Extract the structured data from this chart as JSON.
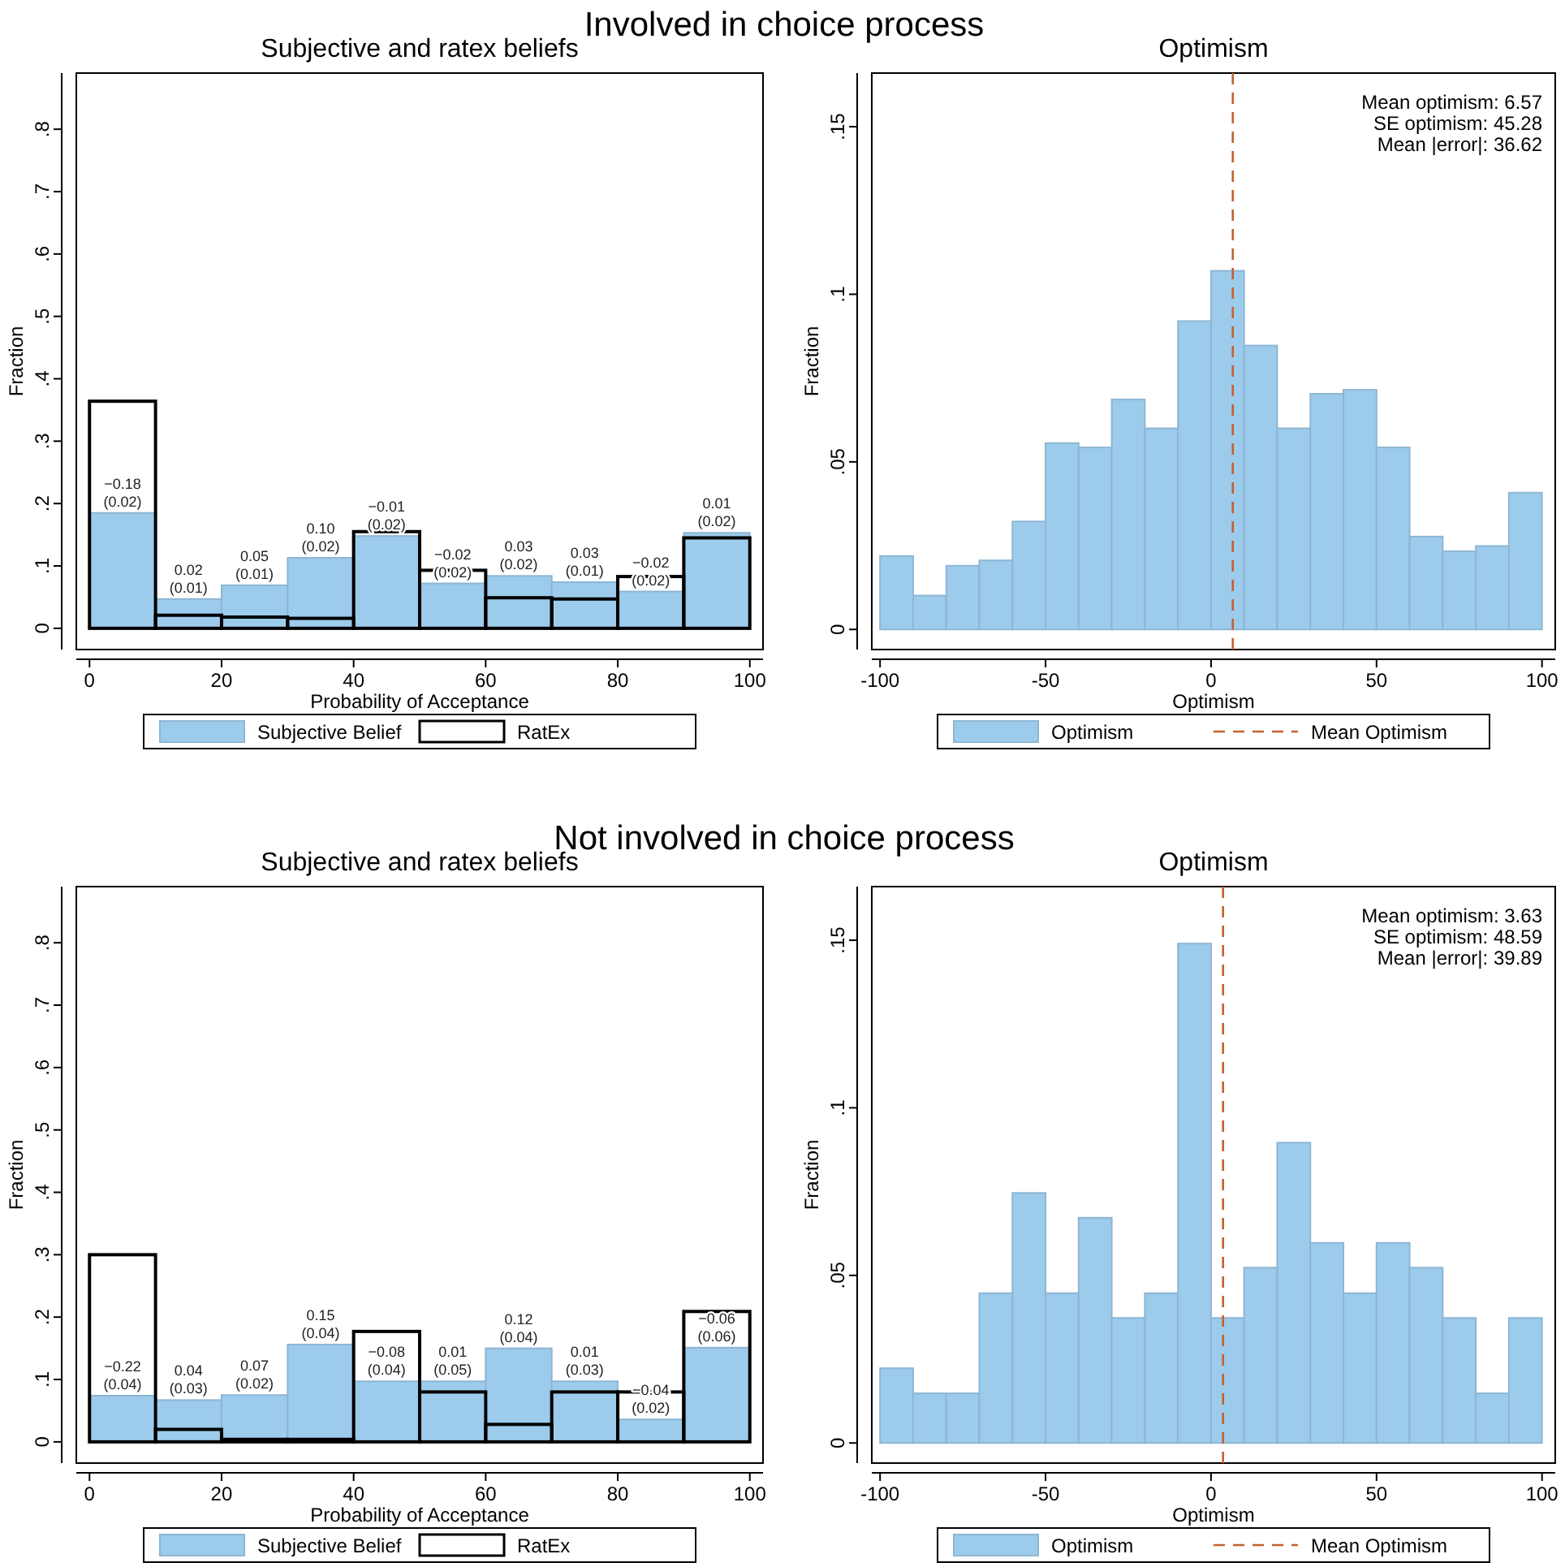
{
  "chart_data": [
    {
      "type": "histogram",
      "title": "Subjective and ratex beliefs",
      "xlabel": "Probability of Acceptance",
      "ylabel": "Fraction",
      "bins": [
        0,
        10,
        20,
        30,
        40,
        50,
        60,
        70,
        80,
        90,
        100
      ],
      "xlim": [
        -2,
        102
      ],
      "ylim": [
        -0.034,
        0.89
      ],
      "xticks": [
        0,
        20,
        40,
        60,
        80,
        100
      ],
      "yticks": [
        {
          "value": 0,
          "label": "0"
        },
        {
          "value": 0.1,
          "label": ".1"
        },
        {
          "value": 0.2,
          "label": ".2"
        },
        {
          "value": 0.3,
          "label": ".3"
        },
        {
          "value": 0.4,
          "label": ".4"
        },
        {
          "value": 0.5,
          "label": ".5"
        },
        {
          "value": 0.6,
          "label": ".6"
        },
        {
          "value": 0.7,
          "label": ".7"
        },
        {
          "value": 0.8,
          "label": ".8"
        }
      ],
      "legend": "bottom",
      "series": [
        {
          "name": "Subjective Belief",
          "color": "#9dcbec",
          "values": [
            0.185,
            0.047,
            0.069,
            0.113,
            0.148,
            0.072,
            0.084,
            0.074,
            0.059,
            0.153
          ]
        },
        {
          "name": "RatEx",
          "color": "#000000",
          "values": [
            0.364,
            0.021,
            0.018,
            0.016,
            0.155,
            0.093,
            0.049,
            0.047,
            0.083,
            0.145
          ]
        }
      ],
      "annotations": [
        "Involved in choice process",
        {
          "text": "−0.18\n(0.02)",
          "x": 5,
          "y": 0.185
        },
        {
          "text": "0.02\n(0.01)",
          "x": 15,
          "y": 0.047
        },
        {
          "text": "0.05\n(0.01)",
          "x": 25,
          "y": 0.069
        },
        {
          "text": "0.10\n(0.02)",
          "x": 35,
          "y": 0.113
        },
        {
          "text": "−0.01\n(0.02)",
          "x": 45,
          "y": 0.148
        },
        {
          "text": "−0.02\n(0.02)",
          "x": 55,
          "y": 0.072
        },
        {
          "text": "0.03\n(0.02)",
          "x": 65,
          "y": 0.084
        },
        {
          "text": "0.03\n(0.01)",
          "x": 75,
          "y": 0.074
        },
        {
          "text": "−0.02\n(0.02)",
          "x": 85,
          "y": 0.059
        },
        {
          "text": "0.01\n(0.02)",
          "x": 95,
          "y": 0.153
        }
      ]
    },
    {
      "type": "histogram",
      "title": "Optimism",
      "xlabel": "Optimism",
      "ylabel": "Fraction",
      "bins": [
        -100,
        -90,
        -80,
        -70,
        -60,
        -50,
        -40,
        -30,
        -20,
        -10,
        0,
        10,
        20,
        30,
        40,
        50,
        60,
        70,
        80,
        90,
        100
      ],
      "xlim": [
        -102.5,
        104
      ],
      "ylim": [
        -0.006,
        0.166
      ],
      "xticks": [
        -100,
        -50,
        0,
        50,
        100
      ],
      "yticks": [
        {
          "value": 0,
          "label": "0"
        },
        {
          "value": 0.05,
          "label": ".05"
        },
        {
          "value": 0.1,
          "label": ".1"
        },
        {
          "value": 0.15,
          "label": ".15"
        }
      ],
      "legend": "bottom",
      "series": [
        {
          "name": "Optimism",
          "color": "#9dcbec",
          "values": [
            0.0219,
            0.0101,
            0.019,
            0.0206,
            0.0322,
            0.0556,
            0.0543,
            0.0686,
            0.06,
            0.092,
            0.107,
            0.0847,
            0.06,
            0.0703,
            0.0715,
            0.0543,
            0.0277,
            0.0233,
            0.0249,
            0.0408
          ]
        }
      ],
      "ref_lines": [
        {
          "axis": "x",
          "value": 6.57,
          "label": "Mean Optimism",
          "color": "#c4602d",
          "line_style": "dashed"
        }
      ],
      "annotations": [
        "Mean optimism: 6.57",
        "SE optimism: 45.28",
        "Mean |error|: 36.62"
      ]
    },
    {
      "type": "histogram",
      "title": "Subjective and ratex beliefs",
      "xlabel": "Probability of Acceptance",
      "ylabel": "Fraction",
      "bins": [
        0,
        10,
        20,
        30,
        40,
        50,
        60,
        70,
        80,
        90,
        100
      ],
      "xlim": [
        -2,
        102
      ],
      "ylim": [
        -0.034,
        0.89
      ],
      "xticks": [
        0,
        20,
        40,
        60,
        80,
        100
      ],
      "yticks": [
        {
          "value": 0,
          "label": "0"
        },
        {
          "value": 0.1,
          "label": ".1"
        },
        {
          "value": 0.2,
          "label": ".2"
        },
        {
          "value": 0.3,
          "label": ".3"
        },
        {
          "value": 0.4,
          "label": ".4"
        },
        {
          "value": 0.5,
          "label": ".5"
        },
        {
          "value": 0.6,
          "label": ".6"
        },
        {
          "value": 0.7,
          "label": ".7"
        },
        {
          "value": 0.8,
          "label": ".8"
        }
      ],
      "legend": "bottom",
      "series": [
        {
          "name": "Subjective Belief",
          "color": "#9dcbec",
          "values": [
            0.074,
            0.067,
            0.075,
            0.156,
            0.097,
            0.097,
            0.15,
            0.097,
            0.036,
            0.151
          ]
        },
        {
          "name": "RatEx",
          "color": "#000000",
          "values": [
            0.3,
            0.02,
            0.004,
            0.004,
            0.177,
            0.08,
            0.028,
            0.08,
            0.08,
            0.209
          ]
        }
      ],
      "annotations": [
        "Not involved in choice process",
        {
          "text": "−0.22\n(0.04)",
          "x": 5,
          "y": 0.074
        },
        {
          "text": "0.04\n(0.03)",
          "x": 15,
          "y": 0.067
        },
        {
          "text": "0.07\n(0.02)",
          "x": 25,
          "y": 0.075
        },
        {
          "text": "0.15\n(0.04)",
          "x": 35,
          "y": 0.156
        },
        {
          "text": "−0.08\n(0.04)",
          "x": 45,
          "y": 0.097
        },
        {
          "text": "0.01\n(0.05)",
          "x": 55,
          "y": 0.097
        },
        {
          "text": "0.12\n(0.04)",
          "x": 65,
          "y": 0.15
        },
        {
          "text": "0.01\n(0.03)",
          "x": 75,
          "y": 0.097
        },
        {
          "text": "−0.04\n(0.02)",
          "x": 85,
          "y": 0.036
        },
        {
          "text": "−0.06\n(0.06)",
          "x": 95,
          "y": 0.151
        }
      ]
    },
    {
      "type": "histogram",
      "title": "Optimism",
      "xlabel": "Optimism",
      "ylabel": "Fraction",
      "bins": [
        -100,
        -90,
        -80,
        -70,
        -60,
        -50,
        -40,
        -30,
        -20,
        -10,
        0,
        10,
        20,
        30,
        40,
        50,
        60,
        70,
        80,
        90,
        100
      ],
      "xlim": [
        -102.5,
        104
      ],
      "ylim": [
        -0.006,
        0.166
      ],
      "xticks": [
        -100,
        -50,
        0,
        50,
        100
      ],
      "yticks": [
        {
          "value": 0,
          "label": "0"
        },
        {
          "value": 0.05,
          "label": ".05"
        },
        {
          "value": 0.1,
          "label": ".1"
        },
        {
          "value": 0.15,
          "label": ".15"
        }
      ],
      "legend": "bottom",
      "series": [
        {
          "name": "Optimism",
          "color": "#9dcbec",
          "values": [
            0.0223,
            0.0148,
            0.0148,
            0.0447,
            0.0746,
            0.0447,
            0.0672,
            0.0373,
            0.0447,
            0.149,
            0.0373,
            0.0523,
            0.0896,
            0.0597,
            0.0447,
            0.0597,
            0.0523,
            0.0373,
            0.0148,
            0.0373
          ]
        }
      ],
      "ref_lines": [
        {
          "axis": "x",
          "value": 3.63,
          "label": "Mean Optimism",
          "color": "#c4602d",
          "line_style": "dashed"
        }
      ],
      "annotations": [
        "Mean optimism: 3.63",
        "SE optimism: 48.59",
        "Mean |error|: 39.89"
      ]
    }
  ]
}
